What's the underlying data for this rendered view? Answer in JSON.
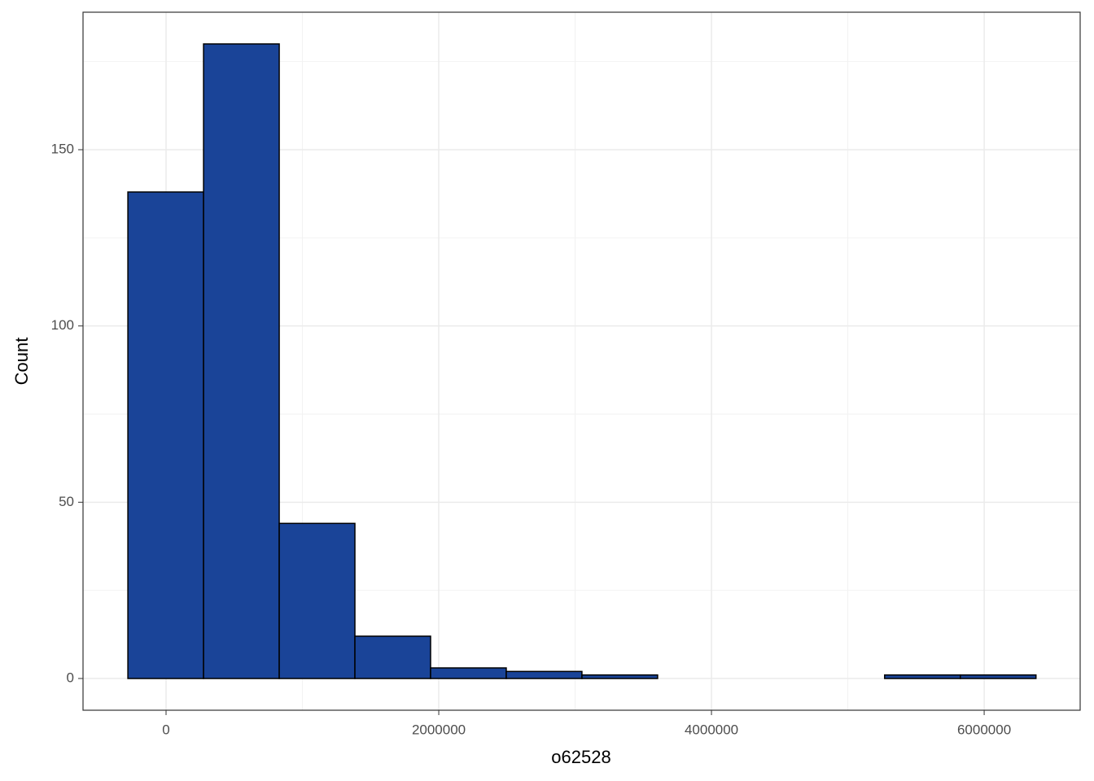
{
  "chart_data": {
    "type": "histogram",
    "x_label": "o62528",
    "y_label": "Count",
    "bins": [
      -280000,
      275000,
      830000,
      1385000,
      1940000,
      2495000,
      3050000,
      3605000,
      4160000,
      4715000,
      5270000,
      5825000,
      6380000
    ],
    "values": [
      138,
      180,
      44,
      12,
      3,
      2,
      1,
      0,
      0,
      0,
      1,
      1
    ],
    "color": "#1a4498",
    "xlim": [
      -609000,
      6704000
    ],
    "xticks": [
      0,
      2000000,
      4000000,
      6000000
    ],
    "ylim": [
      -9,
      189
    ],
    "yticks": [
      0,
      50,
      100,
      150
    ],
    "grid": true
  }
}
